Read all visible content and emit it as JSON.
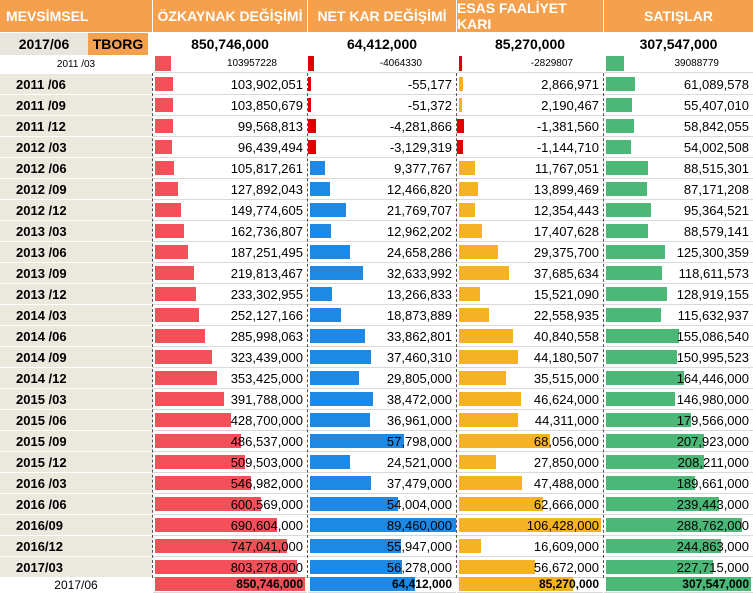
{
  "headers": {
    "period": "MEVSİMSEL",
    "equity": "ÖZKAYNAK DEĞİŞİMİ",
    "net_profit": "NET KAR DEĞİŞİMİ",
    "op_profit": "ESAS FAALİYET KARI",
    "sales": "SATIŞLAR"
  },
  "summary": {
    "period": "2017/06",
    "ticker": "TBORG",
    "equity": "850,746,000",
    "net_profit": "64,412,000",
    "op_profit": "85,270,000",
    "sales": "307,547,000"
  },
  "sub": {
    "period": "2011 /03",
    "equity": "103957228",
    "net_profit": "-4064330",
    "op_profit": "-2829807",
    "sales": "39088779"
  },
  "rows": [
    {
      "period": "2011 /06",
      "equity": "103,902,051",
      "net_profit": "-55,177",
      "op_profit": "2,866,971",
      "sales": "61,089,578"
    },
    {
      "period": "2011 /09",
      "equity": "103,850,679",
      "net_profit": "-51,372",
      "op_profit": "2,190,467",
      "sales": "55,407,010"
    },
    {
      "period": "2011 /12",
      "equity": "99,568,813",
      "net_profit": "-4,281,866",
      "op_profit": "-1,381,560",
      "sales": "58,842,055"
    },
    {
      "period": "2012 /03",
      "equity": "96,439,494",
      "net_profit": "-3,129,319",
      "op_profit": "-1,144,710",
      "sales": "54,002,508"
    },
    {
      "period": "2012 /06",
      "equity": "105,817,261",
      "net_profit": "9,377,767",
      "op_profit": "11,767,051",
      "sales": "88,515,301"
    },
    {
      "period": "2012 /09",
      "equity": "127,892,043",
      "net_profit": "12,466,820",
      "op_profit": "13,899,469",
      "sales": "87,171,208"
    },
    {
      "period": "2012 /12",
      "equity": "149,774,605",
      "net_profit": "21,769,707",
      "op_profit": "12,354,443",
      "sales": "95,364,521"
    },
    {
      "period": "2013 /03",
      "equity": "162,736,807",
      "net_profit": "12,962,202",
      "op_profit": "17,407,628",
      "sales": "88,579,141"
    },
    {
      "period": "2013 /06",
      "equity": "187,251,495",
      "net_profit": "24,658,286",
      "op_profit": "29,375,700",
      "sales": "125,300,359"
    },
    {
      "period": "2013 /09",
      "equity": "219,813,467",
      "net_profit": "32,633,992",
      "op_profit": "37,685,634",
      "sales": "118,611,573"
    },
    {
      "period": "2013 /12",
      "equity": "233,302,955",
      "net_profit": "13,266,833",
      "op_profit": "15,521,090",
      "sales": "128,919,155"
    },
    {
      "period": "2014 /03",
      "equity": "252,127,166",
      "net_profit": "18,873,889",
      "op_profit": "22,558,935",
      "sales": "115,632,937"
    },
    {
      "period": "2014 /06",
      "equity": "285,998,063",
      "net_profit": "33,862,801",
      "op_profit": "40,840,558",
      "sales": "155,086,540"
    },
    {
      "period": "2014 /09",
      "equity": "323,439,000",
      "net_profit": "37,460,310",
      "op_profit": "44,180,507",
      "sales": "150,995,523"
    },
    {
      "period": "2014 /12",
      "equity": "353,425,000",
      "net_profit": "29,805,000",
      "op_profit": "35,515,000",
      "sales": "164,446,000"
    },
    {
      "period": "2015 /03",
      "equity": "391,788,000",
      "net_profit": "38,472,000",
      "op_profit": "46,624,000",
      "sales": "146,980,000"
    },
    {
      "period": "2015 /06",
      "equity": "428,700,000",
      "net_profit": "36,961,000",
      "op_profit": "44,311,000",
      "sales": "179,566,000"
    },
    {
      "period": "2015 /09",
      "equity": "486,537,000",
      "net_profit": "57,798,000",
      "op_profit": "68,056,000",
      "sales": "207,923,000"
    },
    {
      "period": "2015 /12",
      "equity": "509,503,000",
      "net_profit": "24,521,000",
      "op_profit": "27,850,000",
      "sales": "208,211,000"
    },
    {
      "period": "2016 /03",
      "equity": "546,982,000",
      "net_profit": "37,479,000",
      "op_profit": "47,488,000",
      "sales": "189,661,000"
    },
    {
      "period": "2016 /06",
      "equity": "600,569,000",
      "net_profit": "54,004,000",
      "op_profit": "62,666,000",
      "sales": "239,443,000"
    },
    {
      "period": "2016/09",
      "equity": "690,604,000",
      "net_profit": "89,460,000",
      "op_profit": "106,428,000",
      "sales": "288,762,000"
    },
    {
      "period": "2016/12",
      "equity": "747,041,000",
      "net_profit": "55,947,000",
      "op_profit": "16,609,000",
      "sales": "244,863,000"
    },
    {
      "period": "2017/03",
      "equity": "803,278,000",
      "net_profit": "56,278,000",
      "op_profit": "56,672,000",
      "sales": "227,715,000"
    }
  ],
  "last_row": {
    "period": "2017/06",
    "equity": "850,746,000",
    "net_profit": "64,412,000",
    "op_profit": "85,270,000",
    "sales": "307,547,000"
  },
  "scale": {
    "equity_max": 850746000,
    "net_profit_max": 89460000,
    "op_profit_max": 106428000,
    "sales_max": 307547000
  },
  "colors": {
    "header_bg": "#f5a04c",
    "equity_bar": "#f4505a",
    "net_profit_bar": "#1e88e5",
    "op_profit_bar": "#f5b323",
    "sales_bar": "#4cb878",
    "negative_bar": "#e00000"
  }
}
